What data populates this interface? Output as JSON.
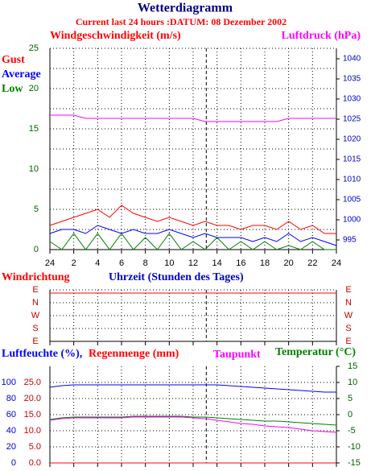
{
  "title": "Wetterdiagramm",
  "subtitle": "Current last 24 hours :DATUM: 08 Dezember 2002",
  "chart_data": [
    {
      "type": "line",
      "y_label": "Windgeschwindigkeit (m/s)",
      "x_label": "Uhrzeit (Stunden des Tages)",
      "x": [
        0,
        1,
        2,
        3,
        4,
        5,
        6,
        7,
        8,
        9,
        10,
        11,
        12,
        13,
        14,
        15,
        16,
        17,
        18,
        19,
        20,
        21,
        22,
        23,
        24
      ],
      "xlim": [
        0,
        24
      ],
      "xticks": [
        {
          "value": 0,
          "label": "24"
        },
        2,
        4,
        6,
        8,
        10,
        12,
        14,
        16,
        18,
        20,
        22,
        24
      ],
      "ylim": [
        0,
        25
      ],
      "yticks": [
        0,
        5,
        10,
        15,
        20,
        25
      ],
      "minor_yticks": [
        2.5,
        7.5,
        12.5,
        17.5,
        22.5
      ],
      "y2lim": [
        992.6,
        1042.6
      ],
      "y2ticks": [
        995,
        1000,
        1005,
        1010,
        1015,
        1020,
        1025,
        1030,
        1035,
        1040
      ],
      "grid": true,
      "marker_x": 13.1,
      "series": [
        {
          "name": "Gust",
          "color": "#ff0000",
          "values": [
            3,
            3.5,
            4,
            4.5,
            5,
            4,
            5.5,
            4.5,
            4,
            3.5,
            4,
            3.5,
            3,
            3.5,
            3,
            3,
            2.5,
            3,
            3,
            2.5,
            3.5,
            2.5,
            3,
            2,
            2
          ]
        },
        {
          "name": "Average",
          "color": "#0000ff",
          "values": [
            2,
            2.5,
            2.5,
            2,
            3,
            2.5,
            2,
            2.5,
            2,
            2,
            2.5,
            2,
            1.5,
            2,
            1.5,
            1.5,
            1.5,
            1,
            1.5,
            1,
            2,
            1,
            1.5,
            1,
            0.5
          ]
        },
        {
          "name": "Low",
          "color": "#008000",
          "values": [
            1,
            0,
            2,
            0,
            2,
            0,
            2,
            0,
            1.5,
            0,
            2,
            0,
            1,
            0,
            1.5,
            0,
            1,
            0,
            1,
            0,
            0.5,
            0,
            1,
            0,
            0
          ]
        },
        {
          "name": "Luftdruck (hPa)",
          "color": "#ff00ff",
          "axis": "y2",
          "values": [
            1026,
            1026,
            1026,
            1025.2,
            1025.2,
            1025.2,
            1025.2,
            1025.2,
            1025.2,
            1025.2,
            1025.2,
            1025.2,
            1025.2,
            1024.4,
            1024.4,
            1024.4,
            1024.4,
            1024.4,
            1024.4,
            1024.4,
            1025.2,
            1025.2,
            1025.2,
            1025.2,
            1025.2
          ]
        }
      ]
    },
    {
      "type": "line",
      "y_label": "Windrichtung",
      "x": [
        0,
        24
      ],
      "xlim": [
        0,
        24
      ],
      "xticks": [
        0,
        2,
        4,
        6,
        8,
        10,
        12,
        14,
        16,
        18,
        20,
        22,
        24
      ],
      "ylim": [
        0,
        4
      ],
      "yticks": [
        {
          "value": 0,
          "label": "E"
        },
        {
          "value": 1,
          "label": "S"
        },
        {
          "value": 2,
          "label": "W"
        },
        {
          "value": 3,
          "label": "N"
        },
        {
          "value": 4,
          "label": "E"
        }
      ],
      "grid": true,
      "series": [
        {
          "color": "#ff0000",
          "values": [
            3.75,
            3.75
          ]
        }
      ]
    },
    {
      "type": "line",
      "x": [
        0,
        1,
        2,
        3,
        4,
        5,
        6,
        7,
        8,
        9,
        10,
        11,
        12,
        13,
        14,
        15,
        16,
        17,
        18,
        19,
        20,
        21,
        22,
        23,
        24
      ],
      "xlim": [
        0,
        24
      ],
      "xticks": [
        0,
        2,
        4,
        6,
        8,
        10,
        12,
        14,
        16,
        18,
        20,
        22,
        24
      ],
      "ylim": [
        0,
        120
      ],
      "yticks": [
        0,
        20,
        40,
        60,
        80,
        100
      ],
      "y3lim": [
        0,
        30
      ],
      "y3ticks": [
        {
          "value": 0,
          "label": "0.0"
        },
        {
          "value": 5,
          "label": "5.0"
        },
        {
          "value": 10,
          "label": "10.0"
        },
        {
          "value": 15,
          "label": "15.0"
        },
        {
          "value": 20,
          "label": "20.0"
        },
        {
          "value": 25,
          "label": "25.0"
        }
      ],
      "y2lim": [
        -15,
        15
      ],
      "y2ticks": [
        -15,
        -10,
        -5,
        0,
        5,
        10,
        15
      ],
      "grid": true,
      "series": [
        {
          "name": "Luftfeuchte (%),",
          "color": "#0000ff",
          "values": [
            94,
            96,
            97,
            97,
            97,
            97,
            97,
            97,
            97,
            97,
            97,
            97,
            97,
            97,
            97,
            96,
            95,
            94,
            93,
            92,
            91,
            90,
            89,
            88,
            88
          ]
        },
        {
          "name": "Regenmenge (mm)",
          "color": "#ff0000",
          "axis": "y3",
          "values": [
            0,
            0,
            0,
            0,
            0,
            0,
            0,
            0,
            0,
            0,
            0,
            0,
            0,
            0,
            0,
            0,
            0,
            0,
            0,
            0,
            0,
            0,
            0,
            0,
            0
          ]
        },
        {
          "name": "Taupunkt",
          "color": "#ff00ff",
          "axis": "y2",
          "values": [
            -1.75,
            -1.25,
            -1,
            -1,
            -1,
            -1,
            -1,
            -0.75,
            -0.75,
            -0.75,
            -0.75,
            -0.75,
            -1,
            -1.25,
            -1.75,
            -2.25,
            -2.75,
            -3,
            -3.5,
            -3.75,
            -4,
            -4.5,
            -5,
            -5.25,
            -5.5
          ]
        },
        {
          "name": "Temperatur (°C)",
          "color": "#008000",
          "axis": "y2",
          "values": [
            -1.5,
            -1,
            -0.75,
            -0.75,
            -0.75,
            -0.75,
            -0.75,
            -0.5,
            -0.5,
            -0.5,
            -0.5,
            -0.5,
            -0.75,
            -0.75,
            -1,
            -1.25,
            -1.5,
            -1.75,
            -2,
            -2,
            -2.25,
            -2.5,
            -2.75,
            -3,
            -3.25
          ]
        }
      ]
    }
  ]
}
